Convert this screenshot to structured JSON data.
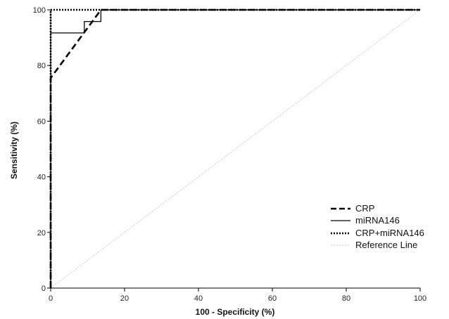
{
  "chart_data": {
    "type": "line",
    "xlabel": "100 - Specificity (%)",
    "ylabel": "Sensitivity (%)",
    "xlim": [
      0,
      100
    ],
    "ylim": [
      0,
      100
    ],
    "xticks": [
      0,
      20,
      40,
      60,
      80,
      100
    ],
    "yticks": [
      0,
      20,
      40,
      60,
      80,
      100
    ],
    "grid": false,
    "legend_position": "bottom-right",
    "series": [
      {
        "name": "CRP",
        "style": "dashed",
        "x": [
          0,
          0,
          13.6,
          100
        ],
        "y": [
          0,
          75.5,
          100,
          100
        ]
      },
      {
        "name": "miRNA146",
        "style": "solid",
        "x": [
          0,
          0,
          9.1,
          9.1,
          13.6,
          13.6,
          100
        ],
        "y": [
          0,
          91.7,
          91.7,
          95.8,
          95.8,
          100,
          100
        ]
      },
      {
        "name": "CRP+miRNA146",
        "style": "dotted",
        "x": [
          0,
          0,
          100
        ],
        "y": [
          0,
          100,
          100
        ]
      },
      {
        "name": "Reference Line",
        "style": "reference",
        "x": [
          0,
          100
        ],
        "y": [
          0,
          100
        ]
      }
    ]
  }
}
